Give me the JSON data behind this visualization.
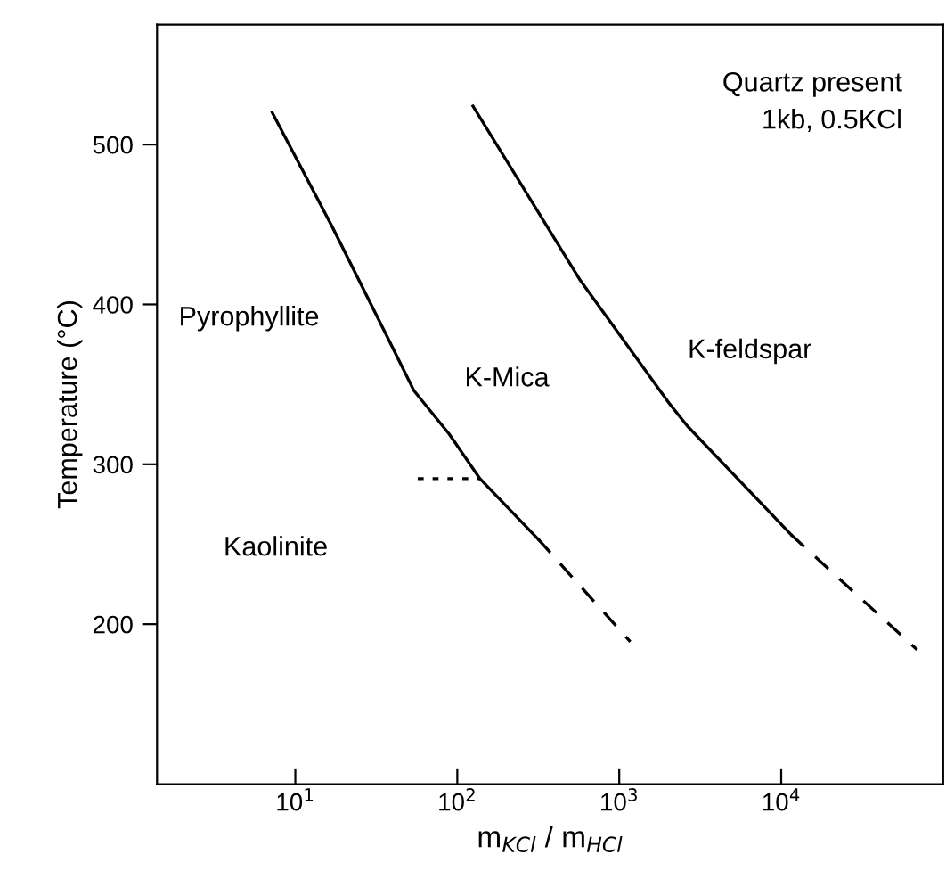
{
  "chart_data": {
    "type": "line",
    "xlabel": "m$_{KCl}$ / m$_{HCl}$",
    "ylabel": "Temperature (°C)",
    "log": "x",
    "xlim": [
      1.4,
      100000
    ],
    "xticks": [
      {
        "value": 10,
        "label": "10$^{1}$"
      },
      {
        "value": 100,
        "label": "10$^{2}$"
      },
      {
        "value": 1000,
        "label": "10$^{3}$"
      },
      {
        "value": 10000,
        "label": "10$^{4}$"
      }
    ],
    "ylim": [
      100,
      575
    ],
    "yticks": [
      200,
      300,
      400,
      500
    ],
    "grid": false,
    "marker": "none",
    "series": [
      {
        "color": "#000000",
        "line_style": "solid",
        "x": [
          7.2,
          17,
          36,
          54,
          89,
          138,
          317
        ],
        "values": [
          520,
          448,
          382,
          346,
          319,
          291,
          253
        ]
      },
      {
        "color": "#000000",
        "line_style": "dashed",
        "x": [
          317,
          1170
        ],
        "values": [
          253,
          189
        ]
      },
      {
        "color": "#000000",
        "line_style": "dotted",
        "x": [
          57,
          138
        ],
        "values": [
          291,
          291
        ]
      },
      {
        "color": "#000000",
        "line_style": "solid",
        "x": [
          125,
          575,
          2040,
          2630,
          11500
        ],
        "values": [
          524,
          415,
          338,
          324,
          256
        ]
      },
      {
        "color": "#000000",
        "line_style": "dashed",
        "x": [
          11500,
          69000
        ],
        "values": [
          256,
          184
        ]
      }
    ],
    "annotations": [
      "Quartz present\n1kb, 0.5KCl",
      "Pyrophyllite",
      "K-Mica",
      "K-feldspar",
      "Kaolinite"
    ]
  }
}
